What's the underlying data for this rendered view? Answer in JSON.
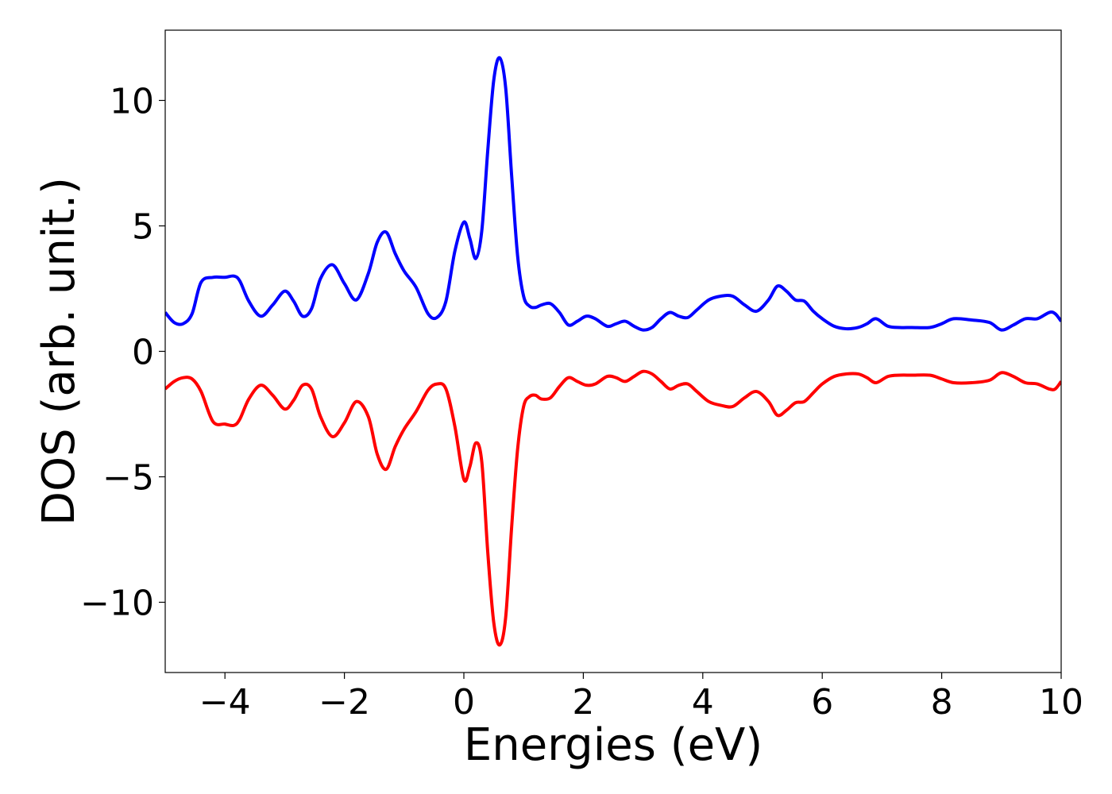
{
  "chart_data": {
    "type": "line",
    "title": "",
    "xlabel": "Energies (eV)",
    "ylabel": "DOS (arb. unit.)",
    "xlim": [
      -5,
      10
    ],
    "ylim": [
      -12.8,
      12.8
    ],
    "xticks": [
      -4,
      -2,
      0,
      2,
      4,
      6,
      8,
      10
    ],
    "xtick_labels": [
      "−4",
      "−2",
      "0",
      "2",
      "4",
      "6",
      "8",
      "10"
    ],
    "yticks": [
      -10,
      -5,
      0,
      5,
      10
    ],
    "ytick_labels": [
      "−10",
      "−5",
      "0",
      "5",
      "10"
    ],
    "grid": false,
    "legend": "none",
    "series": [
      {
        "color": "#0000ff",
        "x": [
          -5.0,
          -4.85,
          -4.7,
          -4.55,
          -4.4,
          -4.2,
          -4.0,
          -3.85,
          -3.75,
          -3.6,
          -3.4,
          -3.2,
          -3.0,
          -2.85,
          -2.7,
          -2.55,
          -2.4,
          -2.2,
          -2.0,
          -1.8,
          -1.6,
          -1.45,
          -1.3,
          -1.15,
          -1.0,
          -0.8,
          -0.6,
          -0.45,
          -0.3,
          -0.15,
          0.0,
          0.1,
          0.2,
          0.3,
          0.4,
          0.5,
          0.6,
          0.7,
          0.8,
          0.9,
          1.0,
          1.1,
          1.2,
          1.3,
          1.45,
          1.6,
          1.75,
          1.9,
          2.05,
          2.2,
          2.4,
          2.55,
          2.7,
          2.85,
          3.0,
          3.15,
          3.3,
          3.45,
          3.6,
          3.75,
          3.9,
          4.1,
          4.3,
          4.5,
          4.7,
          4.9,
          5.1,
          5.25,
          5.4,
          5.55,
          5.7,
          5.85,
          6.0,
          6.2,
          6.4,
          6.6,
          6.75,
          6.9,
          7.1,
          7.3,
          7.5,
          7.8,
          8.0,
          8.2,
          8.5,
          8.8,
          9.0,
          9.2,
          9.4,
          9.6,
          9.8,
          9.9,
          10.0
        ],
        "y": [
          1.55,
          1.15,
          1.1,
          1.5,
          2.75,
          2.95,
          2.95,
          3.0,
          2.8,
          2.0,
          1.4,
          1.85,
          2.4,
          2.0,
          1.4,
          1.7,
          2.9,
          3.45,
          2.7,
          2.05,
          3.1,
          4.35,
          4.75,
          3.9,
          3.2,
          2.55,
          1.5,
          1.35,
          2.0,
          4.0,
          5.15,
          4.5,
          3.7,
          4.8,
          8.0,
          10.8,
          11.7,
          10.5,
          7.0,
          3.8,
          2.2,
          1.8,
          1.75,
          1.85,
          1.9,
          1.55,
          1.05,
          1.2,
          1.4,
          1.3,
          1.0,
          1.1,
          1.2,
          1.0,
          0.85,
          0.95,
          1.3,
          1.55,
          1.4,
          1.35,
          1.65,
          2.05,
          2.2,
          2.2,
          1.85,
          1.6,
          2.05,
          2.6,
          2.4,
          2.05,
          2.0,
          1.6,
          1.3,
          1.0,
          0.9,
          0.95,
          1.1,
          1.3,
          1.0,
          0.95,
          0.95,
          0.95,
          1.1,
          1.3,
          1.25,
          1.15,
          0.85,
          1.05,
          1.3,
          1.3,
          1.55,
          1.5,
          1.2
        ]
      },
      {
        "color": "#ff0000",
        "x": [
          -5.0,
          -4.85,
          -4.7,
          -4.55,
          -4.4,
          -4.2,
          -4.0,
          -3.85,
          -3.75,
          -3.6,
          -3.4,
          -3.2,
          -3.0,
          -2.85,
          -2.7,
          -2.55,
          -2.4,
          -2.2,
          -2.0,
          -1.8,
          -1.6,
          -1.45,
          -1.3,
          -1.15,
          -1.0,
          -0.8,
          -0.6,
          -0.45,
          -0.3,
          -0.15,
          0.0,
          0.1,
          0.2,
          0.3,
          0.4,
          0.5,
          0.6,
          0.7,
          0.8,
          0.9,
          1.0,
          1.1,
          1.2,
          1.3,
          1.45,
          1.6,
          1.75,
          1.9,
          2.05,
          2.2,
          2.4,
          2.55,
          2.7,
          2.85,
          3.0,
          3.15,
          3.3,
          3.45,
          3.6,
          3.75,
          3.9,
          4.1,
          4.3,
          4.5,
          4.7,
          4.9,
          5.1,
          5.25,
          5.4,
          5.55,
          5.7,
          5.85,
          6.0,
          6.2,
          6.4,
          6.6,
          6.75,
          6.9,
          7.1,
          7.3,
          7.5,
          7.8,
          8.0,
          8.2,
          8.5,
          8.8,
          9.0,
          9.2,
          9.4,
          9.6,
          9.8,
          9.9,
          10.0
        ],
        "y": [
          -1.5,
          -1.2,
          -1.05,
          -1.1,
          -1.6,
          -2.8,
          -2.9,
          -2.95,
          -2.7,
          -1.9,
          -1.35,
          -1.75,
          -2.3,
          -1.95,
          -1.35,
          -1.5,
          -2.6,
          -3.4,
          -2.85,
          -2.0,
          -2.6,
          -4.1,
          -4.7,
          -3.8,
          -3.1,
          -2.4,
          -1.55,
          -1.3,
          -1.5,
          -3.0,
          -5.1,
          -4.6,
          -3.65,
          -4.4,
          -8.0,
          -10.8,
          -11.7,
          -10.6,
          -7.0,
          -3.9,
          -2.2,
          -1.8,
          -1.75,
          -1.9,
          -1.85,
          -1.4,
          -1.05,
          -1.2,
          -1.35,
          -1.3,
          -1.0,
          -1.05,
          -1.2,
          -1.0,
          -0.8,
          -0.9,
          -1.2,
          -1.5,
          -1.35,
          -1.3,
          -1.6,
          -2.0,
          -2.15,
          -2.2,
          -1.85,
          -1.6,
          -2.0,
          -2.55,
          -2.35,
          -2.05,
          -2.0,
          -1.65,
          -1.3,
          -1.0,
          -0.9,
          -0.9,
          -1.05,
          -1.25,
          -1.0,
          -0.95,
          -0.95,
          -0.95,
          -1.1,
          -1.25,
          -1.25,
          -1.15,
          -0.85,
          -1.0,
          -1.25,
          -1.3,
          -1.5,
          -1.5,
          -1.2
        ]
      }
    ]
  }
}
